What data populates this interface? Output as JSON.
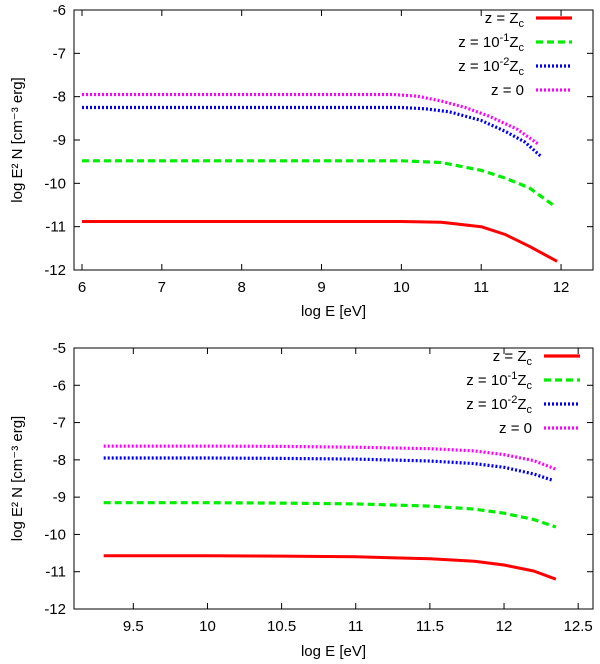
{
  "chart_data": [
    {
      "type": "line",
      "xlabel": "log E [eV]",
      "ylabel": "log E² N [cm⁻³ erg]",
      "xlim": [
        5.9,
        12.4
      ],
      "ylim": [
        -12,
        -6
      ],
      "xticks": [
        6,
        7,
        8,
        9,
        10,
        11,
        12
      ],
      "yticks": [
        -12,
        -11,
        -10,
        -9,
        -8,
        -7,
        -6
      ],
      "legend_position": "top-right",
      "series": [
        {
          "name": "z = Z_c",
          "color": "#ff0000",
          "style": "solid",
          "x": [
            6,
            7,
            8,
            9,
            10,
            10.5,
            11,
            11.3,
            11.6,
            11.95
          ],
          "y": [
            -10.88,
            -10.88,
            -10.88,
            -10.88,
            -10.88,
            -10.9,
            -11.0,
            -11.18,
            -11.45,
            -11.8
          ]
        },
        {
          "name": "z = 10⁻¹Z_c",
          "color": "#00ee00",
          "style": "dashed",
          "x": [
            6,
            7,
            8,
            9,
            10,
            10.5,
            11,
            11.3,
            11.6,
            11.9
          ],
          "y": [
            -9.48,
            -9.48,
            -9.48,
            -9.48,
            -9.48,
            -9.52,
            -9.7,
            -9.88,
            -10.1,
            -10.5
          ]
        },
        {
          "name": "z = 10⁻²Z_c",
          "color": "#0000ee",
          "style": "dotted",
          "x": [
            6,
            7,
            8,
            9,
            10,
            10.3,
            10.6,
            11,
            11.3,
            11.55,
            11.75
          ],
          "y": [
            -8.25,
            -8.25,
            -8.25,
            -8.25,
            -8.25,
            -8.28,
            -8.35,
            -8.55,
            -8.8,
            -9.05,
            -9.38
          ]
        },
        {
          "name": "z = 0",
          "color": "#ff00ff",
          "style": "dotted",
          "x": [
            6,
            7,
            8,
            9,
            9.9,
            10.2,
            10.5,
            10.8,
            11.1,
            11.45,
            11.72
          ],
          "y": [
            -7.95,
            -7.95,
            -7.95,
            -7.95,
            -7.95,
            -7.99,
            -8.1,
            -8.25,
            -8.45,
            -8.75,
            -9.1
          ]
        }
      ],
      "legend": [
        {
          "lhs": "z",
          "eq": "=",
          "rhs": "Z",
          "sup": "",
          "sub": "c"
        },
        {
          "lhs": "z",
          "eq": "=",
          "rhs": "10",
          "sup": "-1",
          "sub": "Z",
          "sub2": "c"
        },
        {
          "lhs": "z",
          "eq": "=",
          "rhs": "10",
          "sup": "-2",
          "sub": "Z",
          "sub2": "c"
        },
        {
          "lhs": "z",
          "eq": "=",
          "rhs": "0",
          "sup": "",
          "sub": ""
        }
      ]
    },
    {
      "type": "line",
      "xlabel": "log E [eV]",
      "ylabel": "log E² N [cm⁻³ erg]",
      "xlim": [
        9.1,
        12.6
      ],
      "ylim": [
        -12,
        -5
      ],
      "xticks": [
        9.5,
        10,
        10.5,
        11,
        11.5,
        12,
        12.5
      ],
      "yticks": [
        -12,
        -11,
        -10,
        -9,
        -8,
        -7,
        -6,
        -5
      ],
      "legend_position": "top-right",
      "series": [
        {
          "name": "z = Z_c",
          "color": "#ff0000",
          "style": "solid",
          "x": [
            9.3,
            10,
            10.5,
            11,
            11.5,
            11.8,
            12.0,
            12.2,
            12.35
          ],
          "y": [
            -10.57,
            -10.57,
            -10.58,
            -10.6,
            -10.65,
            -10.72,
            -10.82,
            -10.98,
            -11.2
          ]
        },
        {
          "name": "z = 10⁻¹Z_c",
          "color": "#00ee00",
          "style": "dashed",
          "x": [
            9.3,
            10,
            10.5,
            11,
            11.5,
            11.8,
            12.0,
            12.2,
            12.35
          ],
          "y": [
            -9.15,
            -9.15,
            -9.16,
            -9.18,
            -9.24,
            -9.32,
            -9.43,
            -9.6,
            -9.8
          ]
        },
        {
          "name": "z = 10⁻²Z_c",
          "color": "#0000ee",
          "style": "dotted",
          "x": [
            9.3,
            10,
            10.5,
            11,
            11.5,
            11.8,
            12.0,
            12.2,
            12.33
          ],
          "y": [
            -7.95,
            -7.95,
            -7.96,
            -7.98,
            -8.03,
            -8.1,
            -8.2,
            -8.38,
            -8.55
          ]
        },
        {
          "name": "z = 0",
          "color": "#ff00ff",
          "style": "dotted",
          "x": [
            9.3,
            10,
            10.5,
            11,
            11.5,
            11.8,
            12.0,
            12.2,
            12.35
          ],
          "y": [
            -7.63,
            -7.63,
            -7.64,
            -7.66,
            -7.7,
            -7.76,
            -7.86,
            -8.02,
            -8.25
          ]
        }
      ],
      "legend": [
        {
          "lhs": "z",
          "eq": "=",
          "rhs": "Z",
          "sup": "",
          "sub": "c"
        },
        {
          "lhs": "z",
          "eq": "=",
          "rhs": "10",
          "sup": "-1",
          "sub": "Z",
          "sub2": "c"
        },
        {
          "lhs": "z",
          "eq": "=",
          "rhs": "10",
          "sup": "-2",
          "sub": "Z",
          "sub2": "c"
        },
        {
          "lhs": "z",
          "eq": "=",
          "rhs": "0",
          "sup": "",
          "sub": ""
        }
      ]
    }
  ]
}
